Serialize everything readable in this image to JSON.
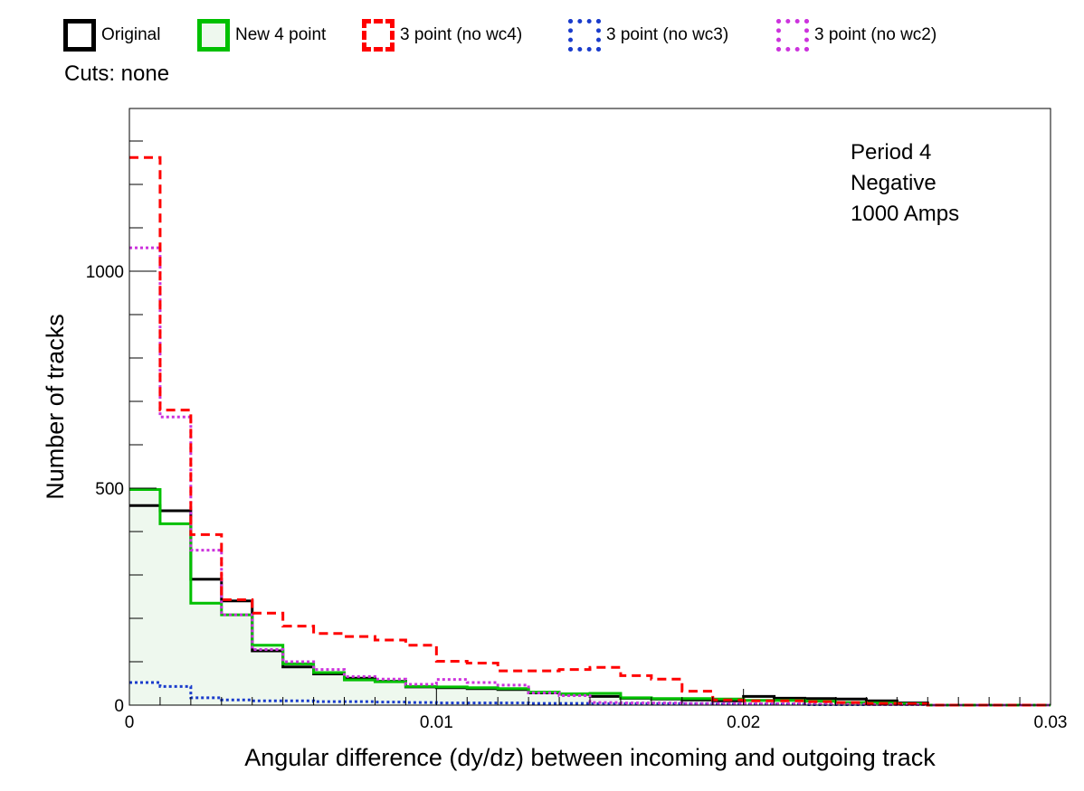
{
  "legend": [
    {
      "label": "Original",
      "color": "#000000",
      "style": "solid",
      "fill": false
    },
    {
      "label": "New 4 point",
      "color": "#00c000",
      "style": "solid",
      "fill": true,
      "fill_color": "#eef8ee"
    },
    {
      "label": "3 point (no wc4)",
      "color": "#ff0000",
      "style": "dashed",
      "fill": false
    },
    {
      "label": "3 point (no wc3)",
      "color": "#1a3ccc",
      "style": "dotted",
      "fill": false
    },
    {
      "label": "3 point (no wc2)",
      "color": "#cc33dd",
      "style": "dotted",
      "fill": false
    }
  ],
  "cuts_label": "Cuts: none",
  "info_lines": [
    "Period 4",
    "Negative",
    "1000 Amps"
  ],
  "chart_data": {
    "type": "line",
    "subtype": "step-histogram",
    "title": "",
    "xlabel": "Angular difference (dy/dz) between incoming and outgoing track",
    "ylabel": "Number of tracks",
    "xlim": [
      0,
      0.03
    ],
    "ylim": [
      0,
      1375
    ],
    "x_ticks": [
      0,
      0.01,
      0.02,
      0.03
    ],
    "x_tick_labels": [
      "0",
      "0.01",
      "0.02",
      "0.03"
    ],
    "y_ticks": [
      0,
      500,
      1000
    ],
    "y_tick_labels": [
      "0",
      "500",
      "1000"
    ],
    "grid": false,
    "legend_position": "top",
    "bin_width": 0.001,
    "bin_edges_start": 0,
    "series": [
      {
        "name": "Original",
        "color": "#000000",
        "dash": "solid",
        "values": [
          460,
          448,
          290,
          240,
          125,
          88,
          72,
          62,
          55,
          42,
          40,
          38,
          36,
          28,
          25,
          20,
          16,
          14,
          12,
          10,
          20,
          16,
          15,
          14,
          10,
          5,
          0,
          0,
          0,
          0
        ]
      },
      {
        "name": "New 4 point",
        "color": "#00c000",
        "dash": "solid",
        "values": [
          497,
          418,
          235,
          208,
          138,
          95,
          75,
          58,
          54,
          43,
          42,
          40,
          38,
          30,
          26,
          27,
          17,
          15,
          15,
          14,
          11,
          11,
          9,
          6,
          5,
          3,
          0,
          0,
          0,
          0
        ]
      },
      {
        "name": "3 point (no wc4)",
        "color": "#ff0000",
        "dash": "dashed",
        "values": [
          1262,
          680,
          393,
          243,
          212,
          182,
          165,
          158,
          150,
          138,
          101,
          97,
          79,
          79,
          82,
          87,
          68,
          60,
          32,
          12,
          10,
          10,
          8,
          6,
          4,
          3,
          0,
          0,
          0,
          0
        ]
      },
      {
        "name": "3 point (no wc3)",
        "color": "#1a3ccc",
        "dash": "dotted",
        "values": [
          52,
          43,
          17,
          12,
          10,
          10,
          8,
          8,
          7,
          6,
          5,
          5,
          5,
          4,
          4,
          3,
          3,
          3,
          3,
          2,
          2,
          2,
          1,
          1,
          1,
          1,
          0,
          0,
          0,
          0
        ]
      },
      {
        "name": "3 point (no wc2)",
        "color": "#cc33dd",
        "dash": "dotted",
        "values": [
          1054,
          664,
          357,
          208,
          128,
          100,
          82,
          66,
          60,
          48,
          59,
          52,
          46,
          28,
          22,
          6,
          5,
          5,
          4,
          4,
          3,
          3,
          2,
          2,
          1,
          1,
          0,
          0,
          0,
          0
        ]
      }
    ]
  }
}
